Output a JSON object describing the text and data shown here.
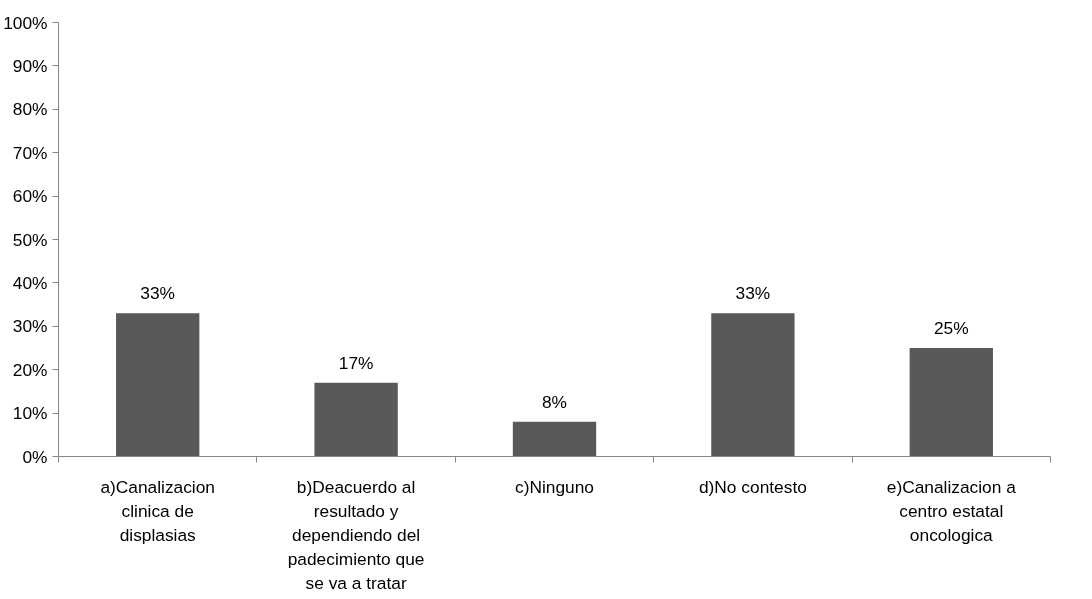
{
  "chart_data": {
    "type": "bar",
    "categories": [
      "a)Canalizacion clinica de displasias",
      "b)Deacuerdo al resultado y dependiendo del padecimiento que se va a tratar",
      "c)Ninguno",
      "d)No contesto",
      "e)Canalizacion a centro estatal oncologica"
    ],
    "values": [
      33,
      17,
      8,
      33,
      25
    ],
    "value_labels": [
      "33%",
      "17%",
      "8%",
      "33%",
      "25%"
    ],
    "color": "#595959",
    "ylim": [
      0,
      100
    ],
    "yticks": [
      {
        "value": 0,
        "label": "0%"
      },
      {
        "value": 10,
        "label": "10%"
      },
      {
        "value": 20,
        "label": "20%"
      },
      {
        "value": 30,
        "label": "30%"
      },
      {
        "value": 40,
        "label": "40%"
      },
      {
        "value": 50,
        "label": "50%"
      },
      {
        "value": 60,
        "label": "60%"
      },
      {
        "value": 70,
        "label": "70%"
      },
      {
        "value": 80,
        "label": "80%"
      },
      {
        "value": 90,
        "label": "90%"
      },
      {
        "value": 100,
        "label": "100%"
      }
    ],
    "grid": false
  }
}
